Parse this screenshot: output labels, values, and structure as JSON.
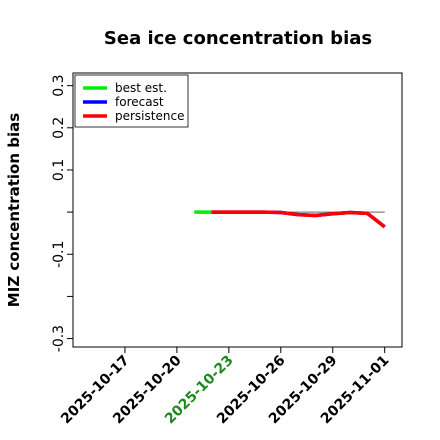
{
  "chart_data": {
    "type": "line",
    "title": "Sea ice concentration bias",
    "xlabel": "",
    "ylabel": "MIZ concentration bias",
    "xlim": [
      "2025-10-14",
      "2025-11-02"
    ],
    "ylim": [
      -0.32,
      0.33
    ],
    "y_ticks": [
      {
        "value": 0.3,
        "label": "0.3"
      },
      {
        "value": 0.2,
        "label": "0.2"
      },
      {
        "value": 0.1,
        "label": "0.1"
      },
      {
        "value": 0.0,
        "label": ""
      },
      {
        "value": -0.1,
        "label": "-0.1"
      },
      {
        "value": -0.2,
        "label": ""
      },
      {
        "value": -0.3,
        "label": "-0.3"
      }
    ],
    "x_ticks": [
      {
        "date": "2025-10-17",
        "label": "2025-10-17",
        "color": "#000000"
      },
      {
        "date": "2025-10-20",
        "label": "2025-10-20",
        "color": "#000000"
      },
      {
        "date": "2025-10-23",
        "label": "2025-10-23",
        "color": "#1a8a1a"
      },
      {
        "date": "2025-10-26",
        "label": "2025-10-26",
        "color": "#000000"
      },
      {
        "date": "2025-10-29",
        "label": "2025-10-29",
        "color": "#000000"
      },
      {
        "date": "2025-11-01",
        "label": "2025-11-01",
        "color": "#000000"
      }
    ],
    "zero_line": {
      "from": "2025-10-22",
      "to": "2025-11-01",
      "color": "#808080"
    },
    "grid": false,
    "legend_position": "top-left",
    "series": [
      {
        "name": "best est.",
        "color": "#00ee00",
        "x": [
          "2025-10-21",
          "2025-10-22"
        ],
        "y": [
          0.0,
          0.0
        ]
      },
      {
        "name": "forecast",
        "color": "#0000ff",
        "x": [
          "2025-10-22",
          "2025-10-23",
          "2025-10-24",
          "2025-10-25",
          "2025-10-26",
          "2025-10-27",
          "2025-10-28",
          "2025-10-29",
          "2025-10-30",
          "2025-10-31",
          "2025-11-01"
        ],
        "y": [
          0.0,
          0.0,
          0.0,
          0.0,
          -0.001,
          -0.006,
          -0.008,
          -0.004,
          -0.001,
          -0.003,
          -0.035
        ]
      },
      {
        "name": "persistence",
        "color": "#ff0000",
        "x": [
          "2025-10-22",
          "2025-10-23",
          "2025-10-24",
          "2025-10-25",
          "2025-10-26",
          "2025-10-27",
          "2025-10-28",
          "2025-10-29",
          "2025-10-30",
          "2025-10-31",
          "2025-11-01"
        ],
        "y": [
          0.0,
          0.0,
          0.0,
          0.0,
          -0.001,
          -0.006,
          -0.008,
          -0.004,
          -0.001,
          -0.003,
          -0.035
        ]
      }
    ]
  }
}
